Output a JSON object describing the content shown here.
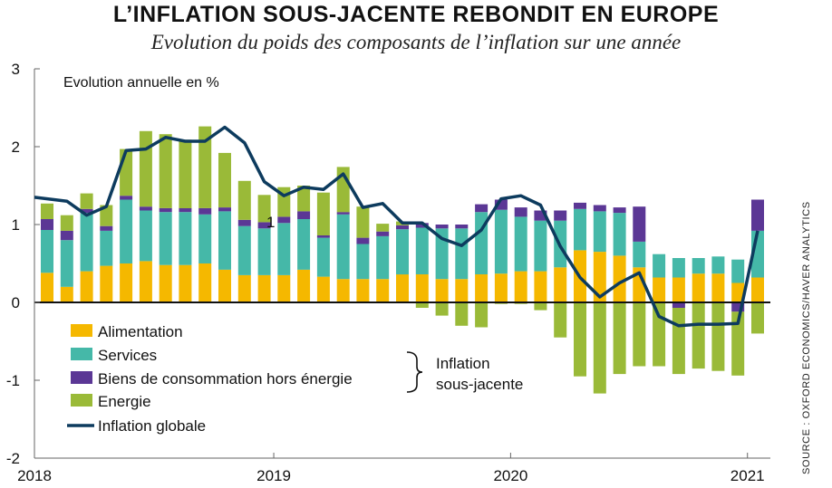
{
  "chart_data": {
    "type": "bar",
    "title": "L’INFLATION SOUS-JACENTE REBONDIT EN EUROPE",
    "subtitle": "Evolution du poids des composants de l’inflation sur une année",
    "ylabel": "Evolution annuelle en %",
    "source": "SOURCE : OXFORD ECONOMICS/HAVER ANALYTICS",
    "annotation": "1",
    "ylim": [
      -2,
      3
    ],
    "yticks": [
      "-2",
      "-1",
      "0",
      "1",
      "2",
      "3"
    ],
    "xticks": [
      "2018",
      "2019",
      "2020",
      "2021"
    ],
    "grid": false,
    "stacked": true,
    "categories": [
      "2018-01",
      "2018-02",
      "2018-03",
      "2018-04",
      "2018-05",
      "2018-06",
      "2018-07",
      "2018-08",
      "2018-09",
      "2018-10",
      "2018-11",
      "2018-12",
      "2019-01",
      "2019-02",
      "2019-03",
      "2019-04",
      "2019-05",
      "2019-06",
      "2019-07",
      "2019-08",
      "2019-09",
      "2019-10",
      "2019-11",
      "2019-12",
      "2020-01",
      "2020-02",
      "2020-03",
      "2020-04",
      "2020-05",
      "2020-06",
      "2020-07",
      "2020-08",
      "2020-09",
      "2020-10",
      "2020-11",
      "2020-12",
      "2021-01"
    ],
    "series": [
      {
        "name": "Alimentation",
        "color": "#f5b800",
        "values": [
          0.38,
          0.2,
          0.4,
          0.47,
          0.5,
          0.53,
          0.48,
          0.48,
          0.5,
          0.42,
          0.35,
          0.35,
          0.35,
          0.42,
          0.33,
          0.3,
          0.3,
          0.3,
          0.36,
          0.36,
          0.3,
          0.3,
          0.36,
          0.37,
          0.4,
          0.4,
          0.45,
          0.67,
          0.65,
          0.6,
          0.45,
          0.32,
          0.32,
          0.37,
          0.37,
          0.25,
          0.32
        ]
      },
      {
        "name": "Services",
        "color": "#45b8a8",
        "values": [
          0.55,
          0.6,
          0.75,
          0.45,
          0.82,
          0.65,
          0.68,
          0.68,
          0.63,
          0.75,
          0.63,
          0.6,
          0.67,
          0.65,
          0.5,
          0.83,
          0.45,
          0.55,
          0.58,
          0.6,
          0.65,
          0.65,
          0.8,
          0.82,
          0.7,
          0.65,
          0.6,
          0.53,
          0.52,
          0.55,
          0.33,
          0.3,
          0.25,
          0.2,
          0.22,
          0.3,
          0.6
        ]
      },
      {
        "name": "Biens de consommation hors énergie",
        "color": "#5b3795",
        "values": [
          0.14,
          0.12,
          0.05,
          0.06,
          0.05,
          0.05,
          0.05,
          0.05,
          0.08,
          0.05,
          0.08,
          0.08,
          0.08,
          0.1,
          0.03,
          0.03,
          0.08,
          0.06,
          0.05,
          0.06,
          0.05,
          0.05,
          0.1,
          0.13,
          0.12,
          0.13,
          0.13,
          0.08,
          0.08,
          0.07,
          0.45,
          0,
          -0.07,
          0,
          0,
          -0.12,
          0.4
        ]
      },
      {
        "name": "Energie",
        "color": "#9aba38",
        "values": [
          0.2,
          0.2,
          0.2,
          0.27,
          0.6,
          0.97,
          0.95,
          0.88,
          1.05,
          0.7,
          0.5,
          0.35,
          0.38,
          0.33,
          0.55,
          0.58,
          0.4,
          0.1,
          0.05,
          -0.07,
          -0.17,
          -0.3,
          -0.32,
          -0.02,
          -0.02,
          -0.1,
          -0.45,
          -0.95,
          -1.17,
          -0.92,
          -0.82,
          -0.82,
          -0.85,
          -0.85,
          -0.88,
          -0.82,
          -0.4
        ]
      }
    ],
    "line": {
      "name": "Inflation globale",
      "color": "#0d3b5e",
      "values": [
        1.35,
        1.3,
        1.12,
        1.23,
        1.95,
        1.97,
        2.12,
        2.07,
        2.07,
        2.25,
        2.05,
        1.55,
        1.37,
        1.48,
        1.45,
        1.65,
        1.22,
        1.27,
        1.02,
        1.02,
        0.82,
        0.73,
        0.93,
        1.33,
        1.37,
        1.25,
        0.72,
        0.32,
        0.07,
        0.25,
        0.38,
        -0.18,
        -0.3,
        -0.28,
        -0.28,
        -0.27,
        0.92
      ]
    },
    "bracket_label": [
      "Inflation",
      "sous-jacente"
    ],
    "legend": "bottom-left"
  }
}
